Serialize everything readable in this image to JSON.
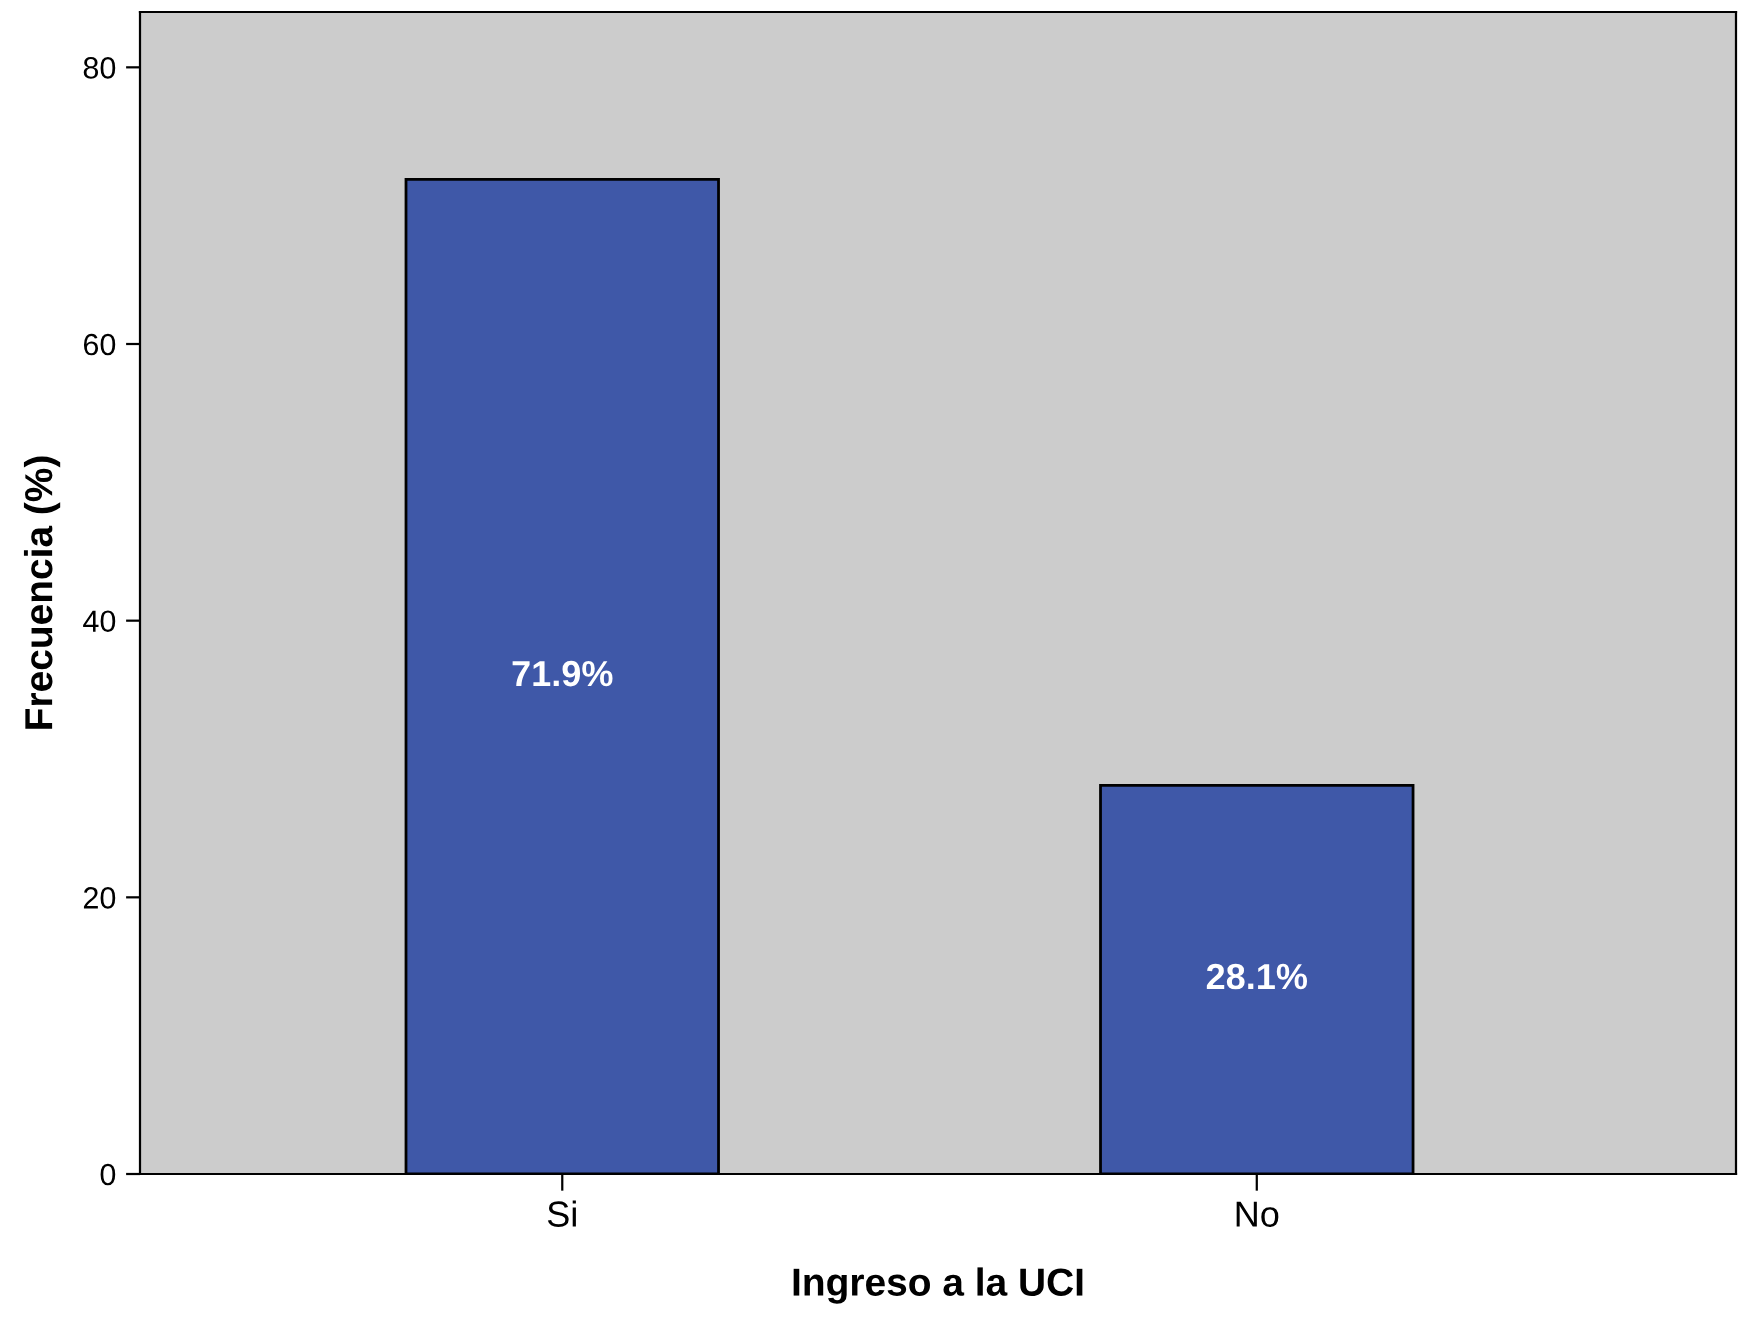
{
  "chart_data": {
    "type": "bar",
    "xlabel": "Ingreso a la UCI",
    "ylabel": "Frecuencia (%)",
    "categories": [
      "Si",
      "No"
    ],
    "values": [
      71.9,
      28.1
    ],
    "color": "#3f58a8",
    "value_labels": [
      "71.9%",
      "28.1%"
    ],
    "ylim": [
      0,
      84
    ],
    "yticks": [
      0,
      20,
      40,
      60,
      80
    ],
    "grid": false,
    "legend": false
  }
}
